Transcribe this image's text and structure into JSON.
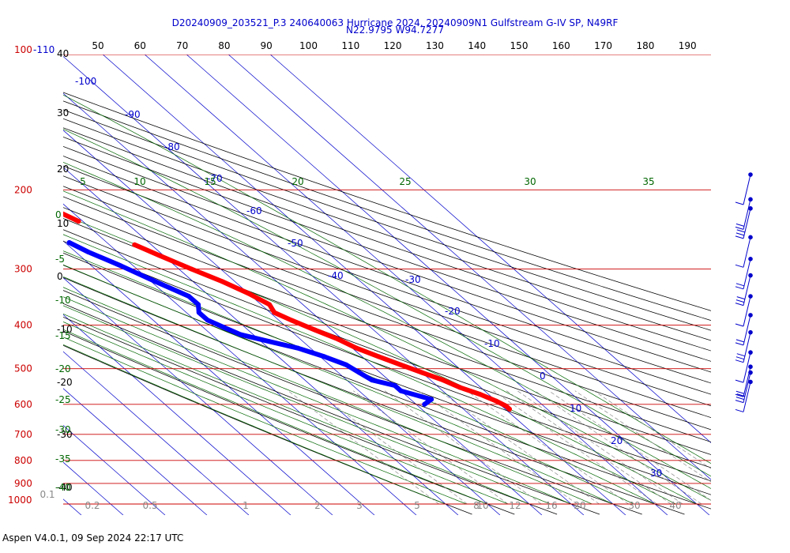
{
  "header": {
    "title_line1": "D20240909_203521_P.3 240640063 Hurricane 2024, 20240909N1 Gulfstream G-IV SP, N49RF",
    "title_line2": "N22.9795 W94.7277"
  },
  "footer": {
    "version_label": "Aspen V4.0.1, 09 Sep 2024  22:17 UTC"
  },
  "colors": {
    "isobar": "#cc0000",
    "isotherm": "#0000cc",
    "dry_adiabat": "#000000",
    "moist_adiabat": "#006600",
    "mixing_ratio": "#888888",
    "temperature": "#ff0000",
    "dewpoint": "#0000ff",
    "wind": "#0000cc"
  },
  "chart_data": {
    "type": "skew-t",
    "pressure_labels": [
      {
        "p": 100,
        "label": "100"
      },
      {
        "p": 200,
        "label": "200"
      },
      {
        "p": 300,
        "label": "300"
      },
      {
        "p": 400,
        "label": "400"
      },
      {
        "p": 500,
        "label": "500"
      },
      {
        "p": 600,
        "label": "600"
      },
      {
        "p": 700,
        "label": "700"
      },
      {
        "p": 800,
        "label": "800"
      },
      {
        "p": 900,
        "label": "900"
      },
      {
        "p": 1000,
        "label": "1000"
      }
    ],
    "isobar_pressures": [
      100,
      200,
      300,
      400,
      500,
      600,
      700,
      800,
      900,
      1000
    ],
    "top_pressure_extra_label": "-110",
    "isotherm_labels": [
      {
        "t": -100,
        "label": "-100"
      },
      {
        "t": -90,
        "label": "-90"
      },
      {
        "t": -80,
        "label": "-80"
      },
      {
        "t": -70,
        "label": "-70"
      },
      {
        "t": -60,
        "label": "-60"
      },
      {
        "t": -50,
        "label": "-50"
      },
      {
        "t": -40,
        "label": "-40"
      },
      {
        "t": -30,
        "label": "-30"
      },
      {
        "t": -20,
        "label": "-20"
      },
      {
        "t": -10,
        "label": "-10"
      },
      {
        "t": 0,
        "label": "0"
      },
      {
        "t": 10,
        "label": "10"
      },
      {
        "t": 20,
        "label": "20"
      },
      {
        "t": 30,
        "label": "30"
      }
    ],
    "isotherm_range": [
      -160,
      40
    ],
    "dry_adiabat_top_labels": [
      "50",
      "60",
      "70",
      "80",
      "90",
      "100",
      "110",
      "120",
      "130",
      "140",
      "150",
      "160",
      "170",
      "180",
      "190"
    ],
    "dry_adiabat_left_labels": [
      "40",
      "30",
      "20",
      "10",
      "0",
      "-10",
      "-20",
      "-30",
      "-40"
    ],
    "moist_adiabat_top_labels": [
      "5",
      "10",
      "15",
      "20",
      "25",
      "30",
      "35"
    ],
    "moist_adiabat_left_labels": [
      "0",
      "-5",
      "-10",
      "-15",
      "-20",
      "-25",
      "-30",
      "-35",
      "-40"
    ],
    "mixing_ratio_labels": [
      "0.1",
      "0.2",
      "0.5",
      "1",
      "2",
      "3",
      "5",
      "8",
      "10",
      "12",
      "16",
      "20",
      "30",
      "40"
    ],
    "temperature_profile": [
      {
        "p": 185,
        "t": -64
      },
      {
        "p": 195,
        "t": -62
      },
      {
        "p": 205,
        "t": -59
      },
      {
        "p": 215,
        "t": -56
      },
      {
        "p": 225,
        "t": -53
      },
      {
        "p": 235,
        "t": -51
      },
      {
        "p": 265,
        "t": -44
      },
      {
        "p": 280,
        "t": -41
      },
      {
        "p": 300,
        "t": -37
      },
      {
        "p": 320,
        "t": -33
      },
      {
        "p": 340,
        "t": -30
      },
      {
        "p": 360,
        "t": -28
      },
      {
        "p": 375,
        "t": -29
      },
      {
        "p": 390,
        "t": -27
      },
      {
        "p": 410,
        "t": -24
      },
      {
        "p": 430,
        "t": -21
      },
      {
        "p": 450,
        "t": -19
      },
      {
        "p": 470,
        "t": -16
      },
      {
        "p": 490,
        "t": -13
      },
      {
        "p": 510,
        "t": -10
      },
      {
        "p": 530,
        "t": -7
      },
      {
        "p": 550,
        "t": -5
      },
      {
        "p": 570,
        "t": -2
      },
      {
        "p": 590,
        "t": 0
      },
      {
        "p": 605,
        "t": 1
      },
      {
        "p": 615,
        "t": 1
      }
    ],
    "dewpoint_profile": [
      {
        "p": 212,
        "t": -80
      },
      {
        "p": 220,
        "t": -76
      },
      {
        "p": 228,
        "t": -73
      },
      {
        "p": 262,
        "t": -59
      },
      {
        "p": 275,
        "t": -57
      },
      {
        "p": 295,
        "t": -53
      },
      {
        "p": 320,
        "t": -49
      },
      {
        "p": 345,
        "t": -45
      },
      {
        "p": 360,
        "t": -45
      },
      {
        "p": 375,
        "t": -47
      },
      {
        "p": 390,
        "t": -47
      },
      {
        "p": 405,
        "t": -45
      },
      {
        "p": 420,
        "t": -43
      },
      {
        "p": 435,
        "t": -38
      },
      {
        "p": 450,
        "t": -33
      },
      {
        "p": 470,
        "t": -29
      },
      {
        "p": 490,
        "t": -26
      },
      {
        "p": 510,
        "t": -25
      },
      {
        "p": 530,
        "t": -24
      },
      {
        "p": 545,
        "t": -20
      },
      {
        "p": 560,
        "t": -20
      },
      {
        "p": 575,
        "t": -17
      },
      {
        "p": 585,
        "t": -15
      },
      {
        "p": 600,
        "t": -18
      }
    ],
    "wind_barb_pressures": [
      185,
      210,
      220,
      255,
      285,
      310,
      345,
      380,
      415,
      460,
      495,
      510,
      535
    ],
    "legend": "none",
    "grid": true
  }
}
